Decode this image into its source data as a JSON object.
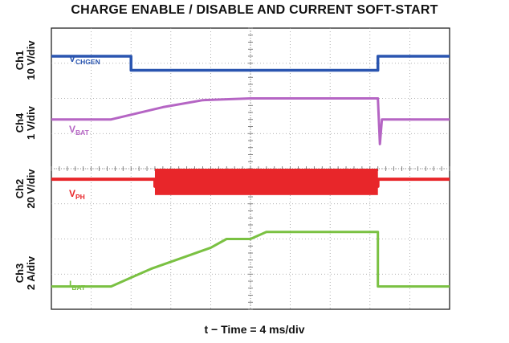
{
  "chart_data": {
    "type": "line",
    "title": "CHARGE ENABLE / DISABLE AND CURRENT SOFT-START",
    "xlabel": "t − Time = 4 ms/div",
    "x_divisions": 10,
    "y_divisions": 8,
    "grid": true,
    "channels": [
      {
        "id": "Ch1",
        "scale": "10 V/div",
        "signal": "V",
        "signal_sub": "CHGEN",
        "color": "#2a55b0"
      },
      {
        "id": "Ch4",
        "scale": "1 V/div",
        "signal": "V",
        "signal_sub": "BAT",
        "color": "#b565c4"
      },
      {
        "id": "Ch2",
        "scale": "20 V/div",
        "signal": "V",
        "signal_sub": "PH",
        "color": "#e8262a"
      },
      {
        "id": "Ch3",
        "scale": "2 A/div",
        "signal": "I",
        "signal_sub": "BAT",
        "color": "#7ac142"
      }
    ],
    "series": [
      {
        "name": "VCHGEN",
        "x": [
          0,
          2,
          2,
          8.2,
          8.2,
          10
        ],
        "y": [
          7.2,
          7.2,
          6.8,
          6.8,
          7.2,
          7.2
        ]
      },
      {
        "name": "VBAT",
        "x": [
          0,
          1.5,
          2.8,
          3.8,
          5,
          8.2,
          8.25,
          8.3,
          10
        ],
        "y": [
          5.4,
          5.4,
          5.75,
          5.95,
          6.0,
          6.0,
          4.7,
          5.4,
          5.4
        ]
      },
      {
        "name": "VPH",
        "x": [
          0,
          2.6,
          2.6,
          8.2,
          8.2,
          10
        ],
        "y": [
          3.7,
          3.7,
          3.5,
          3.5,
          3.7,
          3.7
        ]
      },
      {
        "name": "IBAT",
        "x": [
          0,
          1.5,
          2.0,
          2.5,
          3.0,
          3.5,
          4.0,
          4.4,
          5.0,
          5.4,
          8.2,
          8.2,
          10
        ],
        "y": [
          0.65,
          0.65,
          0.9,
          1.15,
          1.35,
          1.55,
          1.75,
          2.0,
          2.0,
          2.2,
          2.2,
          0.65,
          0.65
        ]
      }
    ],
    "burst": {
      "name": "VPH switching",
      "x_start": 2.6,
      "x_end": 8.2,
      "y_top": 4.0,
      "y_bottom": 3.25
    }
  }
}
